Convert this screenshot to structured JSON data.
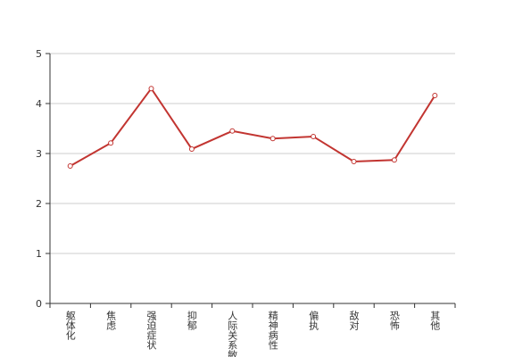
{
  "chart_data": {
    "type": "line",
    "categories": [
      "躯体化",
      "焦虑",
      "强迫症状",
      "抑郁",
      "人际关系敏感",
      "精神病性",
      "偏执",
      "敌对",
      "恐怖",
      "其他"
    ],
    "values": [
      2.75,
      3.21,
      4.3,
      3.09,
      3.45,
      3.3,
      3.34,
      2.84,
      2.87,
      4.16
    ],
    "color": "#c23531",
    "ylim": [
      0,
      5
    ],
    "yticks": [
      0,
      1,
      2,
      3,
      4,
      5
    ],
    "grid": true
  }
}
